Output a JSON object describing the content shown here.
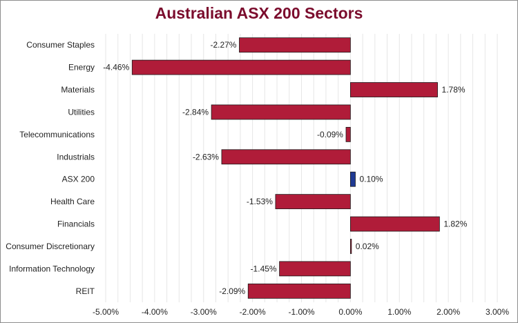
{
  "chart_data": {
    "type": "bar",
    "orientation": "horizontal",
    "title": "Australian ASX 200 Sectors",
    "categories": [
      "Consumer Staples",
      "Energy",
      "Materials",
      "Utilities",
      "Telecommunications",
      "Industrials",
      "ASX 200",
      "Health Care",
      "Financials",
      "Consumer Discretionary",
      "Information Technology",
      "REIT"
    ],
    "values": [
      -2.27,
      -4.46,
      1.78,
      -2.84,
      -0.09,
      -2.63,
      0.1,
      -1.53,
      1.82,
      0.02,
      -1.45,
      -2.09
    ],
    "value_labels": [
      "-2.27%",
      "-4.46%",
      "1.78%",
      "-2.84%",
      "-0.09%",
      "-2.63%",
      "0.10%",
      "-1.53%",
      "1.82%",
      "0.02%",
      "-1.45%",
      "-2.09%"
    ],
    "xlim": [
      -5,
      3
    ],
    "xticks": [
      -5,
      -4,
      -3,
      -2,
      -1,
      0,
      1,
      2,
      3
    ],
    "xtick_labels": [
      "-5.00%",
      "-4.00%",
      "-3.00%",
      "-2.00%",
      "-1.00%",
      "0.00%",
      "1.00%",
      "2.00%",
      "3.00%"
    ],
    "grid": true,
    "colors": {
      "bar": "#b01c39",
      "highlight_bar": "#1f3a93",
      "title": "#7b0c2d",
      "grid": "#e6e6e6"
    },
    "highlight_category": "ASX 200"
  }
}
